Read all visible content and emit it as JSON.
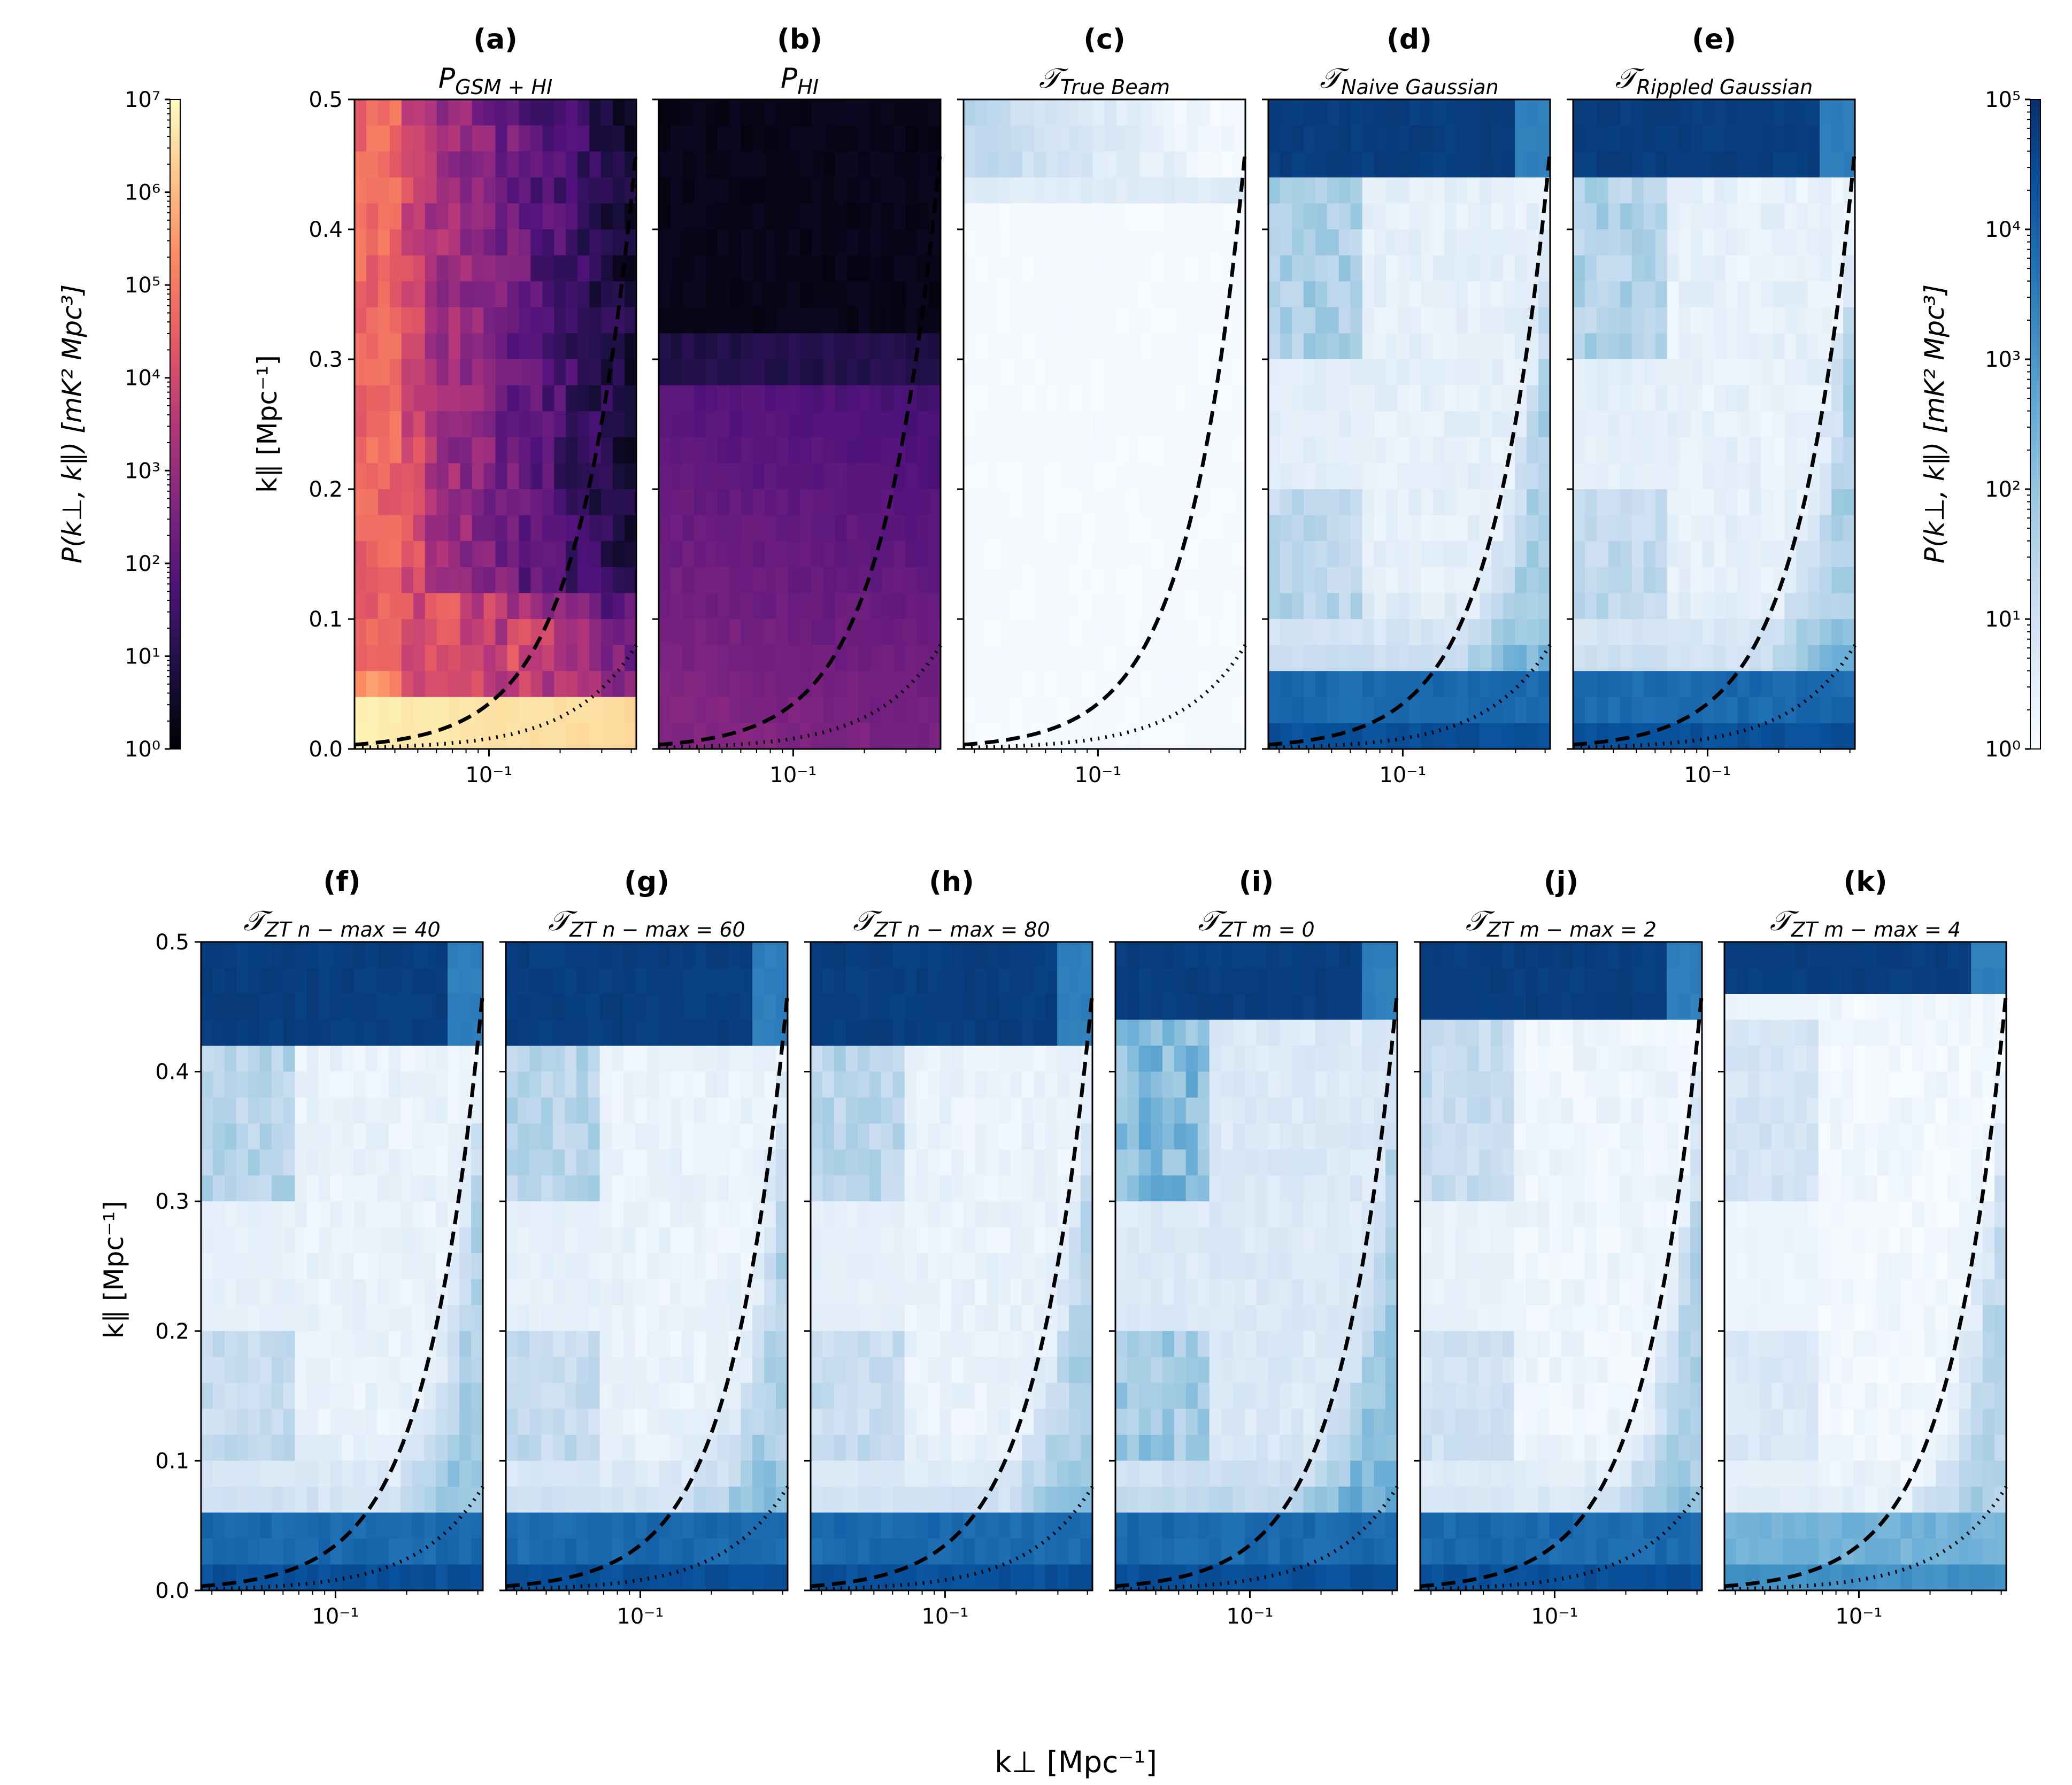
{
  "figure": {
    "shared_xlabel": "k⊥ [Mpc⁻¹]",
    "shared_ylabel": "k∥ [Mpc⁻¹]",
    "x_tick_label": "10⁻¹",
    "y_ticks": [
      "0.0",
      "0.1",
      "0.2",
      "0.3",
      "0.4",
      "0.5"
    ]
  },
  "colorbars": {
    "left": {
      "label": "P(k⊥, k∥) [mK² Mpc³]",
      "ticks": [
        "10⁰",
        "10¹",
        "10²",
        "10³",
        "10⁴",
        "10⁵",
        "10⁶",
        "10⁷"
      ],
      "colormap": "magma"
    },
    "right": {
      "label": "P(k⊥, k∥) [mK² Mpc³]",
      "ticks": [
        "10⁰",
        "10¹",
        "10²",
        "10³",
        "10⁴",
        "10⁵"
      ],
      "colormap": "Blues"
    }
  },
  "chart_data": [
    {
      "type": "heatmap",
      "letter": "(a)",
      "title_main": "P",
      "title_sub": "GSM + HI",
      "cmap": "magma",
      "profile": "gsm",
      "xlabel": "k⊥ [Mpc⁻¹]",
      "ylabel": "k∥ [Mpc⁻¹]",
      "ylim": [
        0,
        0.5
      ],
      "xlim": [
        0.027,
        0.42
      ],
      "x_scale": "log",
      "lines": [
        "horizon (dashed)",
        "beam (dotted)"
      ]
    },
    {
      "type": "heatmap",
      "letter": "(b)",
      "title_main": "P",
      "title_sub": "HI",
      "cmap": "magma",
      "profile": "hi",
      "ylim": [
        0,
        0.5
      ],
      "xlim": [
        0.027,
        0.42
      ],
      "x_scale": "log"
    },
    {
      "type": "heatmap",
      "letter": "(c)",
      "title_main": "𝒯",
      "title_sub": "True Beam",
      "cmap": "blues",
      "profile": "true",
      "ylim": [
        0,
        0.5
      ],
      "xlim": [
        0.027,
        0.42
      ],
      "x_scale": "log"
    },
    {
      "type": "heatmap",
      "letter": "(d)",
      "title_main": "𝒯",
      "title_sub": "Naive Gaussian",
      "cmap": "blues",
      "profile": "naive",
      "ylim": [
        0,
        0.5
      ],
      "xlim": [
        0.027,
        0.42
      ],
      "x_scale": "log"
    },
    {
      "type": "heatmap",
      "letter": "(e)",
      "title_main": "𝒯",
      "title_sub": "Rippled Gaussian",
      "cmap": "blues",
      "profile": "rippled",
      "ylim": [
        0,
        0.5
      ],
      "xlim": [
        0.027,
        0.42
      ],
      "x_scale": "log"
    },
    {
      "type": "heatmap",
      "letter": "(f)",
      "title_main": "𝒯",
      "title_sub": "ZT n − max = 40",
      "cmap": "blues",
      "profile": "n40",
      "ylim": [
        0,
        0.5
      ],
      "xlim": [
        0.027,
        0.42
      ],
      "x_scale": "log"
    },
    {
      "type": "heatmap",
      "letter": "(g)",
      "title_main": "𝒯",
      "title_sub": "ZT n − max = 60",
      "cmap": "blues",
      "profile": "n60",
      "ylim": [
        0,
        0.5
      ],
      "xlim": [
        0.027,
        0.42
      ],
      "x_scale": "log"
    },
    {
      "type": "heatmap",
      "letter": "(h)",
      "title_main": "𝒯",
      "title_sub": "ZT n − max = 80",
      "cmap": "blues",
      "profile": "n80",
      "ylim": [
        0,
        0.5
      ],
      "xlim": [
        0.027,
        0.42
      ],
      "x_scale": "log"
    },
    {
      "type": "heatmap",
      "letter": "(i)",
      "title_main": "𝒯",
      "title_sub": "ZT m = 0",
      "cmap": "blues",
      "profile": "m0",
      "ylim": [
        0,
        0.5
      ],
      "xlim": [
        0.027,
        0.42
      ],
      "x_scale": "log"
    },
    {
      "type": "heatmap",
      "letter": "(j)",
      "title_main": "𝒯",
      "title_sub": "ZT m − max = 2",
      "cmap": "blues",
      "profile": "m2",
      "ylim": [
        0,
        0.5
      ],
      "xlim": [
        0.027,
        0.42
      ],
      "x_scale": "log"
    },
    {
      "type": "heatmap",
      "letter": "(k)",
      "title_main": "𝒯",
      "title_sub": "ZT m − max = 4",
      "cmap": "blues",
      "profile": "m4",
      "ylim": [
        0,
        0.5
      ],
      "xlim": [
        0.027,
        0.42
      ],
      "x_scale": "log"
    }
  ]
}
